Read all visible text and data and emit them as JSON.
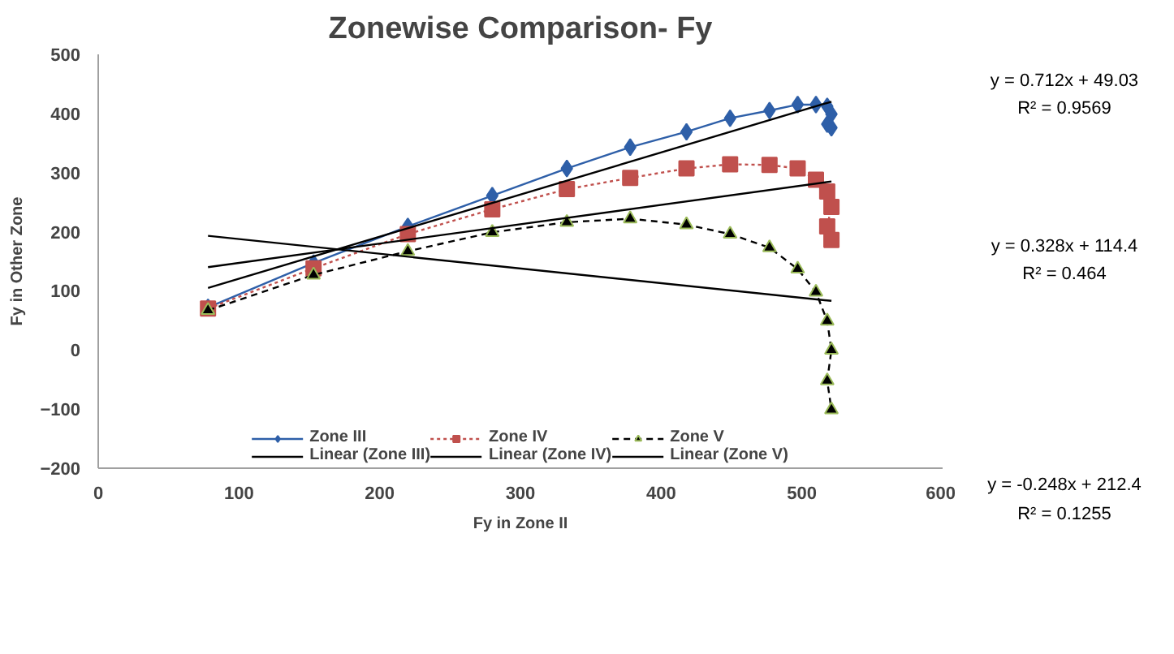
{
  "chart_data": {
    "type": "line",
    "title": "Zonewise Comparison- Fy",
    "xlabel": "Fy in Zone II",
    "ylabel": "Fy in Other Zone",
    "xlim": [
      0,
      600
    ],
    "xticks": [
      0,
      100,
      200,
      300,
      400,
      500,
      600
    ],
    "ylim": [
      -200,
      500
    ],
    "yticks": [
      -200,
      -100,
      0,
      100,
      200,
      300,
      400,
      500
    ],
    "grid": false,
    "legend": "bottom",
    "series": [
      {
        "name": "Zone III",
        "color": "#2e5fa8",
        "marker": "diamond",
        "line_style": "solid",
        "x": [
          78,
          153,
          220,
          280,
          333,
          378,
          418,
          449,
          477,
          497,
          510,
          518,
          521,
          518,
          521
        ],
        "values": [
          72,
          147,
          209,
          261,
          307,
          343,
          369,
          392,
          405,
          415,
          415,
          412,
          399,
          382,
          376
        ]
      },
      {
        "name": "Zone IV",
        "color": "#c0504d",
        "marker": "square",
        "line_style": "dotted",
        "x": [
          78,
          153,
          220,
          280,
          333,
          378,
          418,
          449,
          477,
          497,
          510,
          518,
          521,
          518,
          521
        ],
        "values": [
          70,
          138,
          196,
          238,
          272,
          291,
          307,
          314,
          313,
          307,
          288,
          268,
          242,
          209,
          186
        ]
      },
      {
        "name": "Zone V",
        "color": "#000000",
        "marker": "triangle",
        "line_style": "dashed",
        "x": [
          78,
          153,
          220,
          280,
          333,
          378,
          418,
          449,
          477,
          497,
          510,
          518,
          521,
          518,
          521
        ],
        "values": [
          67,
          127,
          167,
          199,
          216,
          222,
          212,
          196,
          173,
          137,
          98,
          49,
          0,
          -52,
          -101
        ]
      },
      {
        "name": "Linear (Zone III)",
        "color": "#000000",
        "marker": "none",
        "line_style": "solid",
        "x": [
          78,
          521
        ],
        "values": [
          105,
          420
        ]
      },
      {
        "name": "Linear (Zone IV)",
        "color": "#000000",
        "marker": "none",
        "line_style": "solid",
        "x": [
          78,
          521
        ],
        "values": [
          140,
          285
        ]
      },
      {
        "name": "Linear (Zone V)",
        "color": "#000000",
        "marker": "none",
        "line_style": "solid",
        "x": [
          78,
          521
        ],
        "values": [
          193,
          83
        ]
      }
    ],
    "annotations": [
      "y = 0.712x + 49.03",
      "R² = 0.9569",
      "y = 0.328x + 114.4",
      "R² = 0.464",
      "y = -0.248x + 212.4",
      "R² = 0.1255"
    ]
  }
}
